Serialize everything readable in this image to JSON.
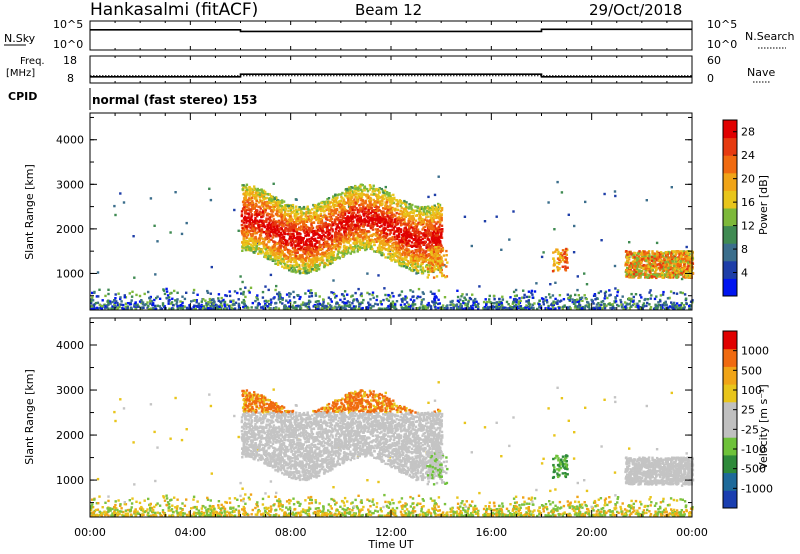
{
  "header": {
    "station": "Hankasalmi (fitACF)",
    "beam": "Beam 12",
    "date": "29/Oct/2018"
  },
  "nsky": {
    "label": "N.Sky",
    "ticks": [
      "10^5",
      "10^0"
    ],
    "right_label": "N.Search",
    "right_ticks": [
      "10^5",
      "10^0"
    ]
  },
  "freq": {
    "label_line1": "Freq.",
    "label_line2": "[MHz]",
    "ticks": [
      "18",
      "8"
    ],
    "right_label": "Nave",
    "right_ticks": [
      "60",
      "0"
    ]
  },
  "cpid": {
    "label": "CPID",
    "mode": "normal (fast stereo) 153"
  },
  "colors": {
    "power": [
      "#0015f0",
      "#1e3ea8",
      "#3b6e8c",
      "#3f8a52",
      "#7db83a",
      "#e8c51b",
      "#f0a417",
      "#f06a10",
      "#e63a10",
      "#e00000"
    ],
    "velocity": [
      "#e00000",
      "#f06a10",
      "#f0a417",
      "#e8c51b",
      "#c0c0c0",
      "#c0c0c0",
      "#6ec23a",
      "#2e8a3a",
      "#1e6a9a",
      "#1a3eb0"
    ],
    "gray": "#c4c4c4"
  },
  "chart_data": [
    {
      "type": "line",
      "title": "N.Sky",
      "x_range": [
        "00:00",
        "24:00"
      ],
      "y_scale": "log",
      "ylim": [
        1,
        100000
      ],
      "series": [
        {
          "values": [
            [
              0,
              3.5
            ],
            [
              6,
              3.5
            ],
            [
              6,
              3.2
            ],
            [
              18,
              3.2
            ],
            [
              18,
              3.6
            ],
            [
              24,
              3.6
            ]
          ]
        }
      ]
    },
    {
      "type": "line",
      "title": "Freq.",
      "ylabel": "[MHz]",
      "ylim": [
        8,
        18
      ],
      "series": [
        {
          "values": [
            [
              0,
              10
            ],
            [
              6,
              10
            ],
            [
              6,
              11
            ],
            [
              18,
              11
            ],
            [
              18,
              10
            ],
            [
              24,
              10
            ]
          ]
        }
      ]
    },
    {
      "type": "heatmap",
      "ylabel": "Slant Range [km]",
      "xlabel": "Time UT",
      "x_ticks": [
        "00:00",
        "04:00",
        "08:00",
        "12:00",
        "16:00",
        "20:00",
        "00:00"
      ],
      "y_ticks": [
        "1000",
        "2000",
        "3000",
        "4000"
      ],
      "ylim": [
        180,
        4600
      ],
      "colorbar": {
        "label": "Power [dB]",
        "ticks": [
          "4",
          "8",
          "12",
          "16",
          "20",
          "24",
          "28"
        ],
        "range": [
          0,
          30
        ]
      }
    },
    {
      "type": "heatmap",
      "ylabel": "Slant Range [km]",
      "xlabel": "Time UT",
      "x_ticks": [
        "00:00",
        "04:00",
        "08:00",
        "12:00",
        "16:00",
        "20:00",
        "00:00"
      ],
      "y_ticks": [
        "1000",
        "2000",
        "3000",
        "4000"
      ],
      "ylim": [
        180,
        4600
      ],
      "colorbar": {
        "label": "Velocity [m s⁻¹]",
        "ticks": [
          "1000",
          "500",
          "100",
          "25",
          "-25",
          "-100",
          "-500",
          "-1000"
        ]
      }
    }
  ],
  "axes": {
    "power_ylabel": "Slant Range [km]",
    "vel_ylabel": "Slant Range [km]",
    "xlabel": "Time UT",
    "x_ticks": [
      "00:00",
      "04:00",
      "08:00",
      "12:00",
      "16:00",
      "20:00",
      "00:00"
    ],
    "y_ticks": [
      "1000",
      "2000",
      "3000",
      "4000"
    ],
    "power_cb_label": "Power [dB]",
    "power_cb_ticks": [
      "4",
      "8",
      "12",
      "16",
      "20",
      "24",
      "28"
    ],
    "vel_cb_label": "Velocity [m s⁻¹]",
    "vel_cb_ticks": [
      "1000",
      "500",
      "100",
      "25",
      "-25",
      "-100",
      "-500",
      "-1000"
    ]
  }
}
